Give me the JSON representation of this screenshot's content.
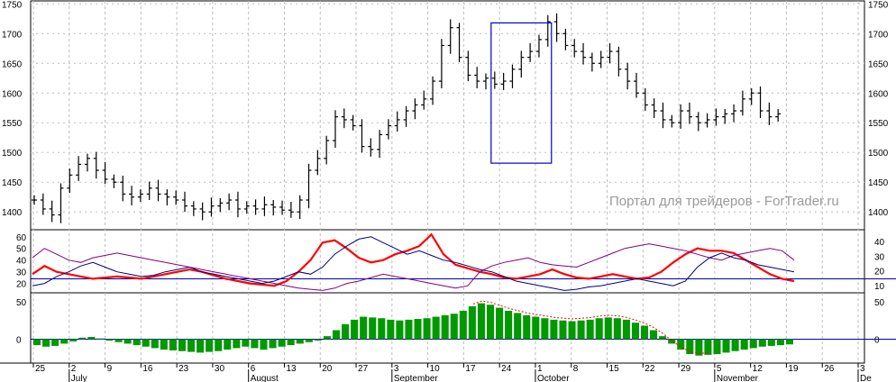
{
  "watermark": "Портал для трейдеров - ForTrader.ru",
  "colors": {
    "price_bars": "#000000",
    "grid": "#bdbdbd",
    "highlight_box": "#0000cc",
    "adx": "#000080",
    "di_plus": "#ff0000",
    "di_minus": "#800080",
    "level_line": "#0000aa",
    "histogram": "#009900",
    "histogram_trend": "#ff0000",
    "zero_line": "#0000aa"
  },
  "chart_data": [
    {
      "type": "ohlc",
      "panel": "price",
      "y_ticks": [
        1400,
        1450,
        1500,
        1550,
        1600,
        1650,
        1700,
        1750
      ],
      "ylim": [
        1370,
        1755
      ],
      "highlight_box": {
        "x_from": 52,
        "x_to": 58,
        "y_from": 1482,
        "y_to": 1718
      },
      "closes": [
        1420,
        1405,
        1395,
        1440,
        1462,
        1480,
        1490,
        1470,
        1455,
        1450,
        1430,
        1425,
        1430,
        1440,
        1430,
        1425,
        1420,
        1410,
        1405,
        1400,
        1410,
        1415,
        1420,
        1405,
        1410,
        1405,
        1412,
        1408,
        1403,
        1400,
        1420,
        1470,
        1490,
        1520,
        1560,
        1555,
        1545,
        1510,
        1505,
        1530,
        1545,
        1555,
        1570,
        1580,
        1590,
        1620,
        1680,
        1710,
        1660,
        1630,
        1620,
        1625,
        1615,
        1620,
        1640,
        1660,
        1670,
        1690,
        1720,
        1700,
        1680,
        1670,
        1660,
        1650,
        1660,
        1670,
        1640,
        1620,
        1600,
        1580,
        1570,
        1555,
        1550,
        1570,
        1560,
        1550,
        1555,
        1560,
        1565,
        1570,
        1590,
        1600,
        1570,
        1560,
        1565
      ],
      "x_labels": [
        "25",
        "2",
        "9",
        "16",
        "23",
        "30",
        "6",
        "13",
        "20",
        "27",
        "3",
        "10",
        "17",
        "24",
        "1",
        "8",
        "15",
        "22",
        "29",
        "5",
        "12",
        "19",
        "26",
        "3"
      ],
      "months": [
        "July",
        "August",
        "September",
        "October",
        "November",
        "De"
      ]
    },
    {
      "type": "line",
      "panel": "indicator",
      "y_ticks_left": [
        20,
        30,
        40,
        50,
        60
      ],
      "y_ticks_right": [
        10,
        20,
        30,
        40
      ],
      "level": 24,
      "series": [
        {
          "values": [
            28,
            35,
            30,
            28,
            26,
            24,
            25,
            26,
            25,
            24,
            26,
            28,
            30,
            32,
            30,
            27,
            24,
            22,
            20,
            19,
            18,
            22,
            30,
            40,
            55,
            57,
            50,
            42,
            38,
            40,
            45,
            48,
            52,
            62,
            45,
            36,
            33,
            30,
            28,
            25,
            24,
            26,
            28,
            32,
            28,
            25,
            24,
            26,
            28,
            26,
            24,
            25,
            30,
            38,
            45,
            50,
            48,
            48,
            46,
            40,
            34,
            28,
            24,
            22
          ]
        },
        {
          "values": [
            42,
            50,
            45,
            40,
            38,
            42,
            44,
            46,
            44,
            42,
            40,
            38,
            36,
            34,
            32,
            30,
            28,
            26,
            24,
            22,
            20,
            18,
            16,
            15,
            14,
            16,
            20,
            22,
            25,
            28,
            26,
            24,
            22,
            20,
            18,
            16,
            18,
            30,
            35,
            38,
            40,
            42,
            38,
            36,
            35,
            34,
            38,
            42,
            46,
            50,
            52,
            54,
            52,
            50,
            48,
            45,
            42,
            40,
            44,
            46,
            48,
            50,
            48,
            40
          ]
        },
        {
          "values": [
            18,
            20,
            26,
            30,
            35,
            38,
            34,
            30,
            28,
            26,
            27,
            30,
            32,
            34,
            30,
            28,
            26,
            24,
            22,
            20,
            22,
            26,
            30,
            28,
            34,
            45,
            52,
            58,
            60,
            55,
            50,
            45,
            48,
            44,
            40,
            38,
            35,
            32,
            30,
            26,
            22,
            20,
            18,
            16,
            14,
            15,
            17,
            18,
            20,
            22,
            24,
            22,
            20,
            18,
            22,
            34,
            42,
            46,
            42,
            40,
            36,
            34,
            32,
            30
          ]
        }
      ]
    },
    {
      "type": "bar",
      "panel": "histogram",
      "y_ticks": [
        0,
        50
      ],
      "values": [
        -8,
        -10,
        -9,
        -6,
        -3,
        2,
        3,
        1,
        -2,
        -4,
        -6,
        -8,
        -10,
        -12,
        -14,
        -15,
        -16,
        -17,
        -18,
        -17,
        -16,
        -14,
        -12,
        -10,
        -12,
        -14,
        -12,
        -10,
        -8,
        -6,
        -4,
        -2,
        4,
        12,
        20,
        26,
        30,
        29,
        28,
        26,
        25,
        26,
        27,
        28,
        30,
        32,
        34,
        38,
        44,
        48,
        46,
        42,
        38,
        35,
        32,
        30,
        28,
        26,
        25,
        24,
        25,
        26,
        28,
        29,
        28,
        26,
        22,
        18,
        12,
        4,
        -6,
        -14,
        -20,
        -22,
        -21,
        -20,
        -18,
        -16,
        -14,
        -12,
        -10,
        -9,
        -8,
        -7
      ]
    }
  ]
}
